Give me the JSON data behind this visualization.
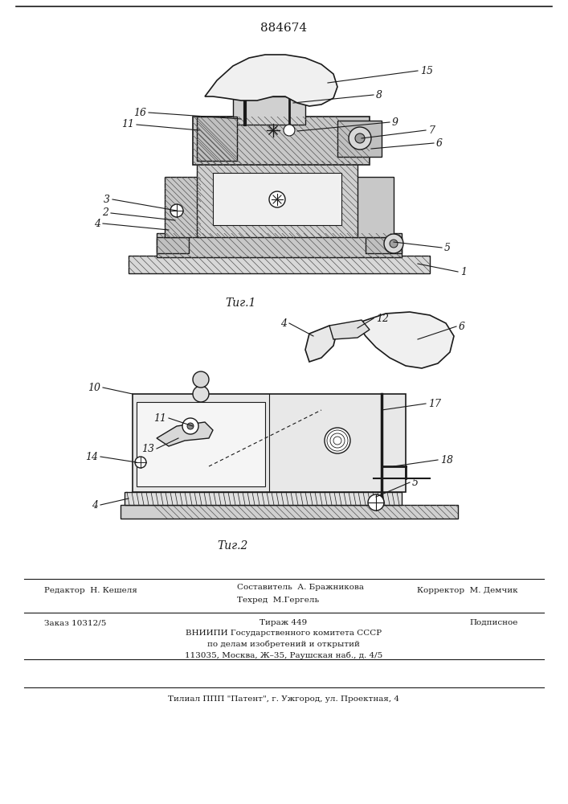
{
  "patent_number": "884674",
  "fig1_label": "Τиг.1",
  "fig2_label": "Τиг.2",
  "footer_line1_left": "Редактор  Н. Кешеля",
  "footer_line1_center1": "Составитель  А. Бражникова",
  "footer_line1_center2": "Техред  М.Гергель",
  "footer_line1_right": "Корректор  М. Демчик",
  "footer_line2_left": "Заказ 10312/5",
  "footer_line2_center": "Тираж 449",
  "footer_line2_right": "Подписное",
  "footer_line3": "ВНИИПИ Государственного комитета СССР",
  "footer_line4": "по делам изобретений и открытий",
  "footer_line5": "113035, Москва, Ж–35, Раушская наб., д. 4/5",
  "footer_last": "Τилиал ППП \"Патент\", г. Ужгород, ул. Проектная, 4",
  "bg_color": "#ffffff",
  "line_color": "#1a1a1a",
  "text_color": "#1a1a1a",
  "hatch_color": "#555555"
}
